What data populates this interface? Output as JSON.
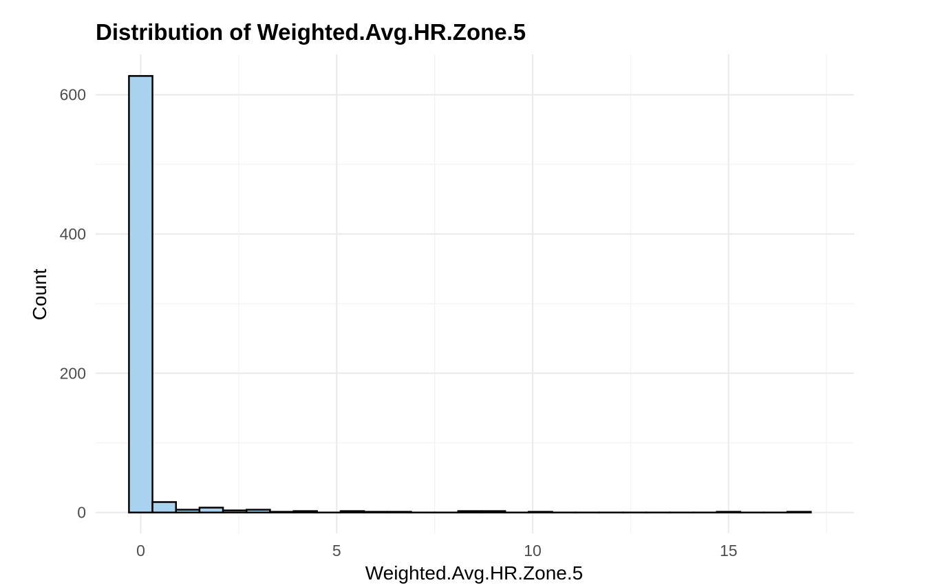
{
  "chart_data": {
    "type": "bar",
    "title": "Distribution of Weighted.Avg.HR.Zone.5",
    "xlabel": "Weighted.Avg.HR.Zone.5",
    "ylabel": "Count",
    "x_ticks": [
      "0",
      "5",
      "10",
      "15"
    ],
    "y_ticks": [
      "0",
      "200",
      "400",
      "600"
    ],
    "xlim": [
      -1.15,
      18.2
    ],
    "ylim": [
      -30,
      658
    ],
    "grid": true,
    "bins": [
      {
        "start": -0.3,
        "end": 0.3,
        "count": 627
      },
      {
        "start": 0.3,
        "end": 0.9,
        "count": 15
      },
      {
        "start": 0.9,
        "end": 1.5,
        "count": 4
      },
      {
        "start": 1.5,
        "end": 2.1,
        "count": 7
      },
      {
        "start": 2.1,
        "end": 2.7,
        "count": 3
      },
      {
        "start": 2.7,
        "end": 3.3,
        "count": 4
      },
      {
        "start": 3.3,
        "end": 3.9,
        "count": 1
      },
      {
        "start": 3.9,
        "end": 4.5,
        "count": 2
      },
      {
        "start": 4.5,
        "end": 5.1,
        "count": 0
      },
      {
        "start": 5.1,
        "end": 5.7,
        "count": 2
      },
      {
        "start": 5.7,
        "end": 6.3,
        "count": 1
      },
      {
        "start": 6.3,
        "end": 6.9,
        "count": 1
      },
      {
        "start": 6.9,
        "end": 7.5,
        "count": 0
      },
      {
        "start": 7.5,
        "end": 8.1,
        "count": 0
      },
      {
        "start": 8.1,
        "end": 8.7,
        "count": 2
      },
      {
        "start": 8.7,
        "end": 9.3,
        "count": 2
      },
      {
        "start": 9.3,
        "end": 9.9,
        "count": 0
      },
      {
        "start": 9.9,
        "end": 10.5,
        "count": 1
      },
      {
        "start": 10.5,
        "end": 11.1,
        "count": 0
      },
      {
        "start": 11.1,
        "end": 11.7,
        "count": 0
      },
      {
        "start": 11.7,
        "end": 12.3,
        "count": 0
      },
      {
        "start": 12.3,
        "end": 12.9,
        "count": 0
      },
      {
        "start": 12.9,
        "end": 13.5,
        "count": 0
      },
      {
        "start": 13.5,
        "end": 14.1,
        "count": 0
      },
      {
        "start": 14.1,
        "end": 14.7,
        "count": 0
      },
      {
        "start": 14.7,
        "end": 15.3,
        "count": 1
      },
      {
        "start": 15.3,
        "end": 15.9,
        "count": 0
      },
      {
        "start": 15.9,
        "end": 16.5,
        "count": 0
      },
      {
        "start": 16.5,
        "end": 17.1,
        "count": 1
      }
    ]
  },
  "colors": {
    "bar_fill": "#a9d2ee",
    "bar_outline": "#000000",
    "grid": "#ebebeb"
  }
}
